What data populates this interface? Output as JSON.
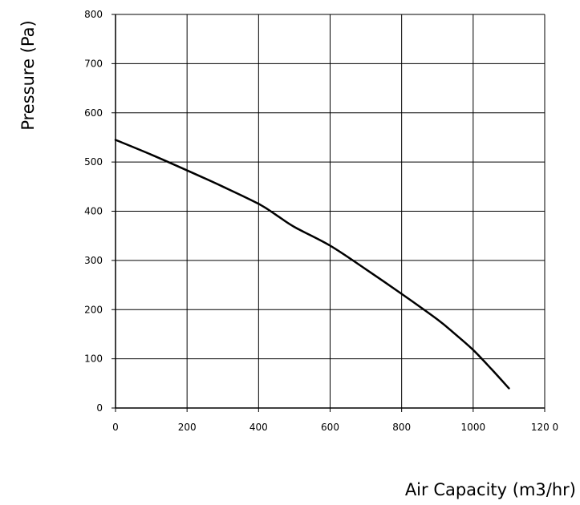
{
  "chart_data": {
    "type": "line",
    "xlabel": "Air Capacity (m3/hr)",
    "ylabel": "Pressure (Pa)",
    "xlim": [
      0,
      1200
    ],
    "ylim": [
      0,
      800
    ],
    "x_ticks": [
      0,
      200,
      400,
      600,
      800,
      1000,
      1200
    ],
    "x_tick_labels": [
      "0",
      "200",
      "400",
      "600",
      "800",
      "1000",
      "120 0"
    ],
    "y_ticks": [
      0,
      100,
      200,
      300,
      400,
      500,
      600,
      700,
      800
    ],
    "y_tick_labels": [
      "0",
      "100",
      "200",
      "300",
      "400",
      "500",
      "600",
      "700",
      "800"
    ],
    "grid": true,
    "series": [
      {
        "x": [
          0,
          100,
          200,
          300,
          400,
          450,
          500,
          600,
          700,
          800,
          900,
          950,
          1000,
          1050,
          1100
        ],
        "y": [
          545,
          515,
          483,
          450,
          415,
          392,
          368,
          330,
          282,
          232,
          180,
          150,
          118,
          80,
          40
        ]
      }
    ]
  }
}
